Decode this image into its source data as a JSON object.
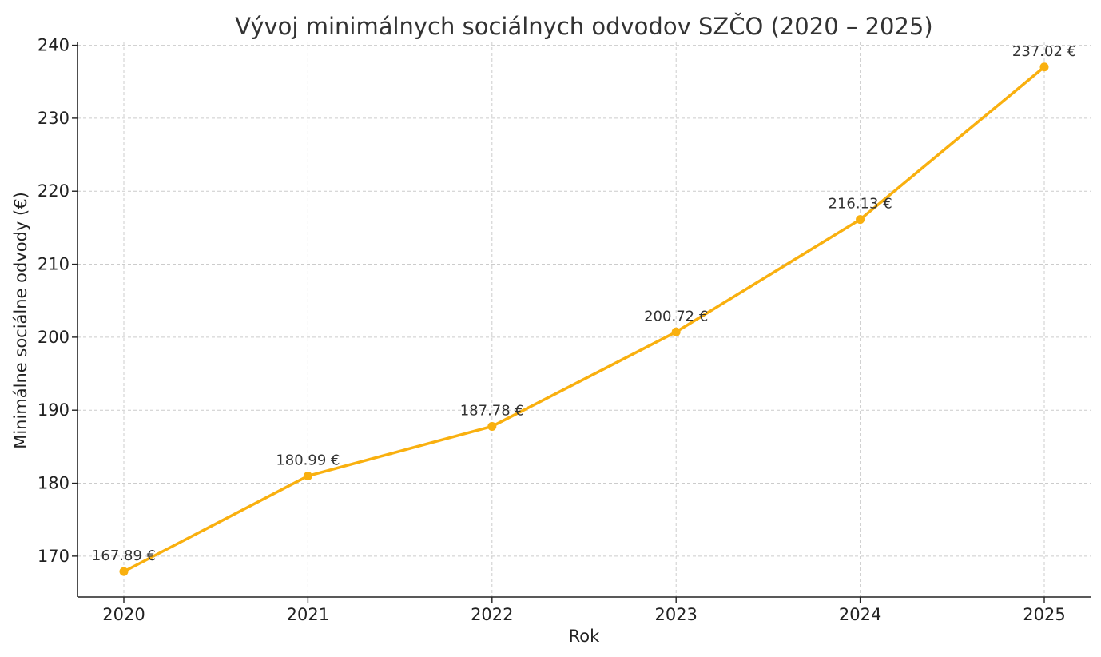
{
  "chart_data": {
    "type": "line",
    "title": "Vývoj minimálnych sociálnych odvodov SZČO (2020 – 2025)",
    "xlabel": "Rok",
    "ylabel": "Minimálne sociálne odvody (€)",
    "x": [
      "2020",
      "2021",
      "2022",
      "2023",
      "2024",
      "2025"
    ],
    "series": [
      {
        "values": [
          167.89,
          180.99,
          187.78,
          200.72,
          216.13,
          237.02
        ],
        "data_labels": [
          "167.89 €",
          "180.99 €",
          "187.78 €",
          "200.72 €",
          "216.13 €",
          "237.02 €"
        ],
        "color": "#F9B00F"
      }
    ],
    "ylim": [
      164.4,
      240.5
    ],
    "yticks": [
      170,
      180,
      190,
      200,
      210,
      220,
      230,
      240
    ],
    "ytick_labels": [
      "170",
      "180",
      "190",
      "200",
      "210",
      "220",
      "230",
      "240"
    ],
    "grid": true,
    "legend": "none"
  }
}
